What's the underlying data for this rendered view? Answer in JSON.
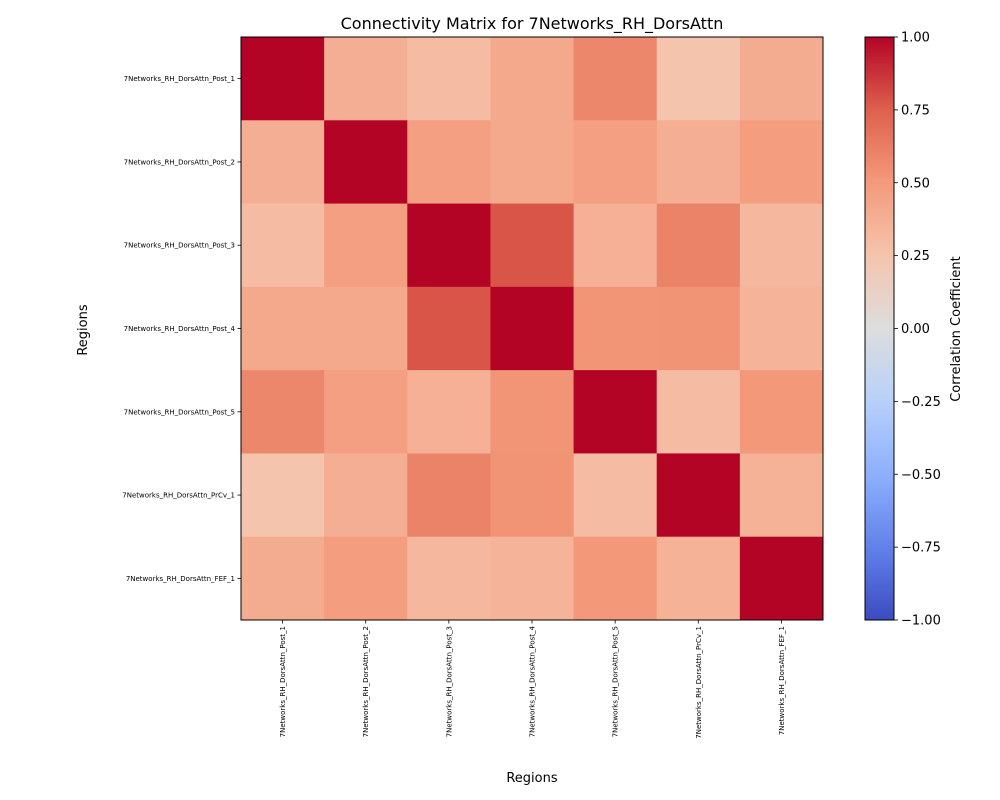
{
  "chart_data": {
    "type": "heatmap",
    "title": "Connectivity Matrix for 7Networks_RH_DorsAttn",
    "xlabel": "Regions",
    "ylabel": "Regions",
    "rows": [
      "7Networks_RH_DorsAttn_Post_1",
      "7Networks_RH_DorsAttn_Post_2",
      "7Networks_RH_DorsAttn_Post_3",
      "7Networks_RH_DorsAttn_Post_4",
      "7Networks_RH_DorsAttn_Post_5",
      "7Networks_RH_DorsAttn_PrCv_1",
      "7Networks_RH_DorsAttn_FEF_1"
    ],
    "columns": [
      "7Networks_RH_DorsAttn_Post_1",
      "7Networks_RH_DorsAttn_Post_2",
      "7Networks_RH_DorsAttn_Post_3",
      "7Networks_RH_DorsAttn_Post_4",
      "7Networks_RH_DorsAttn_Post_5",
      "7Networks_RH_DorsAttn_PrCv_1",
      "7Networks_RH_DorsAttn_FEF_1"
    ],
    "values": [
      [
        1.0,
        0.38,
        0.3,
        0.41,
        0.58,
        0.25,
        0.39
      ],
      [
        0.38,
        1.0,
        0.47,
        0.41,
        0.47,
        0.38,
        0.48
      ],
      [
        0.3,
        0.47,
        1.0,
        0.78,
        0.37,
        0.6,
        0.33
      ],
      [
        0.41,
        0.41,
        0.78,
        1.0,
        0.52,
        0.53,
        0.35
      ],
      [
        0.58,
        0.47,
        0.37,
        0.52,
        1.0,
        0.3,
        0.51
      ],
      [
        0.25,
        0.38,
        0.6,
        0.53,
        0.3,
        1.0,
        0.36
      ],
      [
        0.39,
        0.48,
        0.33,
        0.35,
        0.51,
        0.36,
        1.0
      ]
    ],
    "colormap": "coolwarm",
    "vmin": -1.0,
    "vmax": 1.0,
    "colorbar": {
      "label": "Correlation Coefficient",
      "ticks": [
        "1.00",
        "0.75",
        "0.50",
        "0.25",
        "0.00",
        "−0.25",
        "−0.50",
        "−0.75",
        "−1.00"
      ],
      "tick_values": [
        1.0,
        0.75,
        0.5,
        0.25,
        0.0,
        -0.25,
        -0.5,
        -0.75,
        -1.0
      ]
    }
  }
}
